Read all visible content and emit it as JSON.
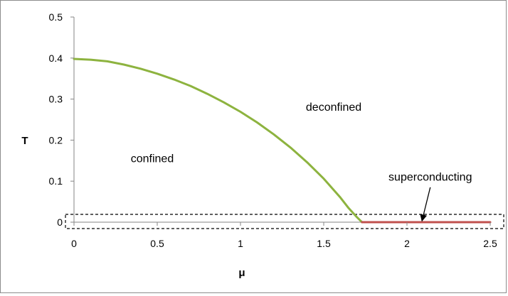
{
  "chart_data": {
    "type": "line",
    "title": "",
    "xlabel": "μ",
    "ylabel": "T",
    "xlim": [
      0,
      2.5
    ],
    "ylim": [
      0,
      0.5
    ],
    "x_ticks": [
      "0",
      "0.5",
      "1",
      "1.5",
      "2",
      "2.5"
    ],
    "y_ticks": [
      "0",
      "0.1",
      "0.2",
      "0.3",
      "0.4",
      "0.5"
    ],
    "grid": false,
    "legend": "none",
    "series": [
      {
        "color": "#8db33f",
        "x": [
          0,
          0.1,
          0.2,
          0.3,
          0.4,
          0.5,
          0.6,
          0.7,
          0.8,
          0.9,
          1.0,
          1.1,
          1.2,
          1.3,
          1.4,
          1.5,
          1.6,
          1.65,
          1.7,
          1.73
        ],
        "y": [
          0.398,
          0.396,
          0.392,
          0.384,
          0.374,
          0.362,
          0.348,
          0.332,
          0.313,
          0.292,
          0.269,
          0.243,
          0.214,
          0.182,
          0.146,
          0.106,
          0.06,
          0.034,
          0.012,
          0
        ]
      },
      {
        "color": "#c0504d",
        "x": [
          1.73,
          2.5
        ],
        "y": [
          0,
          0
        ]
      }
    ],
    "annotations": [
      {
        "text": "deconfined",
        "x": 1.56,
        "y": 0.28
      },
      {
        "text": "confined",
        "x": 0.47,
        "y": 0.155
      },
      {
        "text": "superconducting",
        "x": 2.14,
        "y": 0.11
      }
    ],
    "arrow": {
      "from": [
        2.14,
        0.085
      ],
      "to": [
        2.09,
        0.003
      ]
    }
  }
}
